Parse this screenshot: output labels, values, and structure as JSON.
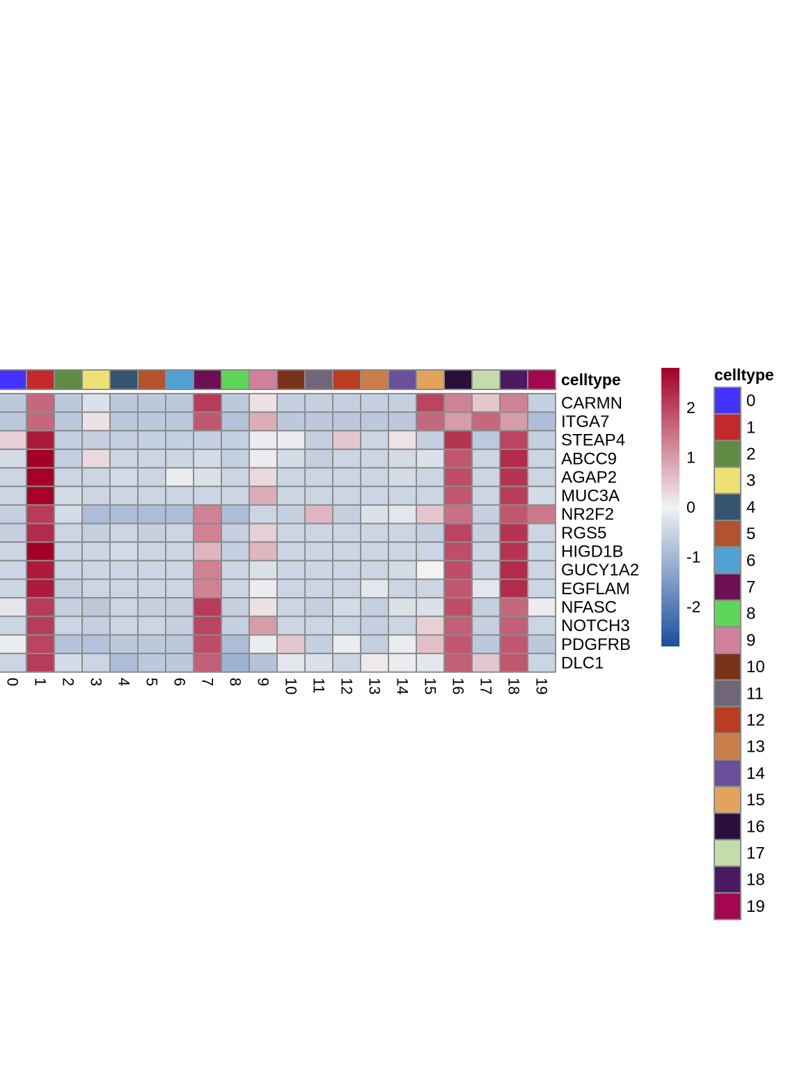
{
  "chart_data": {
    "type": "heatmap",
    "title": "",
    "annotation_title": "celltype",
    "rows": [
      "CARMN",
      "ITGA7",
      "STEAP4",
      "ABCC9",
      "AGAP2",
      "MUC3A",
      "NR2F2",
      "RGS5",
      "HIGD1B",
      "GUCY1A2",
      "EGFLAM",
      "NFASC",
      "NOTCH3",
      "PDGFRB",
      "DLC1"
    ],
    "columns": [
      "0",
      "1",
      "2",
      "3",
      "4",
      "5",
      "6",
      "7",
      "8",
      "9",
      "10",
      "11",
      "12",
      "13",
      "14",
      "15",
      "16",
      "17",
      "18",
      "19"
    ],
    "values": [
      [
        -0.7,
        1.6,
        -0.7,
        -0.3,
        -0.7,
        -0.7,
        -0.7,
        2.1,
        -0.7,
        0.2,
        -0.6,
        -0.6,
        -0.6,
        -0.6,
        -0.6,
        2.0,
        1.3,
        0.5,
        1.3,
        -0.6
      ],
      [
        -0.7,
        1.6,
        -0.7,
        0.2,
        -0.7,
        -0.7,
        -0.7,
        1.8,
        -0.8,
        0.8,
        -0.7,
        -0.7,
        -0.7,
        -0.7,
        -0.7,
        1.6,
        1.0,
        1.6,
        1.0,
        -0.9
      ],
      [
        0.4,
        2.5,
        -0.6,
        -0.6,
        -0.6,
        -0.6,
        -0.6,
        -0.6,
        -0.6,
        -0.1,
        -0.1,
        -0.6,
        0.5,
        -0.5,
        0.2,
        -0.6,
        2.2,
        -0.7,
        2.0,
        -0.6
      ],
      [
        -0.4,
        2.8,
        -0.6,
        0.3,
        -0.5,
        -0.5,
        -0.5,
        -0.4,
        -0.6,
        -0.1,
        -0.4,
        -0.6,
        -0.5,
        -0.5,
        -0.4,
        -0.3,
        1.8,
        -0.5,
        2.3,
        -0.5
      ],
      [
        -0.5,
        2.8,
        -0.5,
        -0.5,
        -0.4,
        -0.5,
        -0.1,
        -0.3,
        -0.5,
        0.3,
        -0.5,
        -0.5,
        -0.5,
        -0.5,
        -0.4,
        -0.5,
        1.9,
        -0.5,
        2.2,
        -0.5
      ],
      [
        -0.5,
        2.8,
        -0.4,
        -0.5,
        -0.5,
        -0.5,
        -0.5,
        -0.5,
        -0.5,
        0.8,
        -0.5,
        -0.5,
        -0.5,
        -0.5,
        -0.5,
        -0.5,
        1.8,
        -0.5,
        2.1,
        -0.4
      ],
      [
        -0.6,
        2.1,
        -0.4,
        -0.9,
        -0.9,
        -0.9,
        -0.9,
        1.3,
        -0.9,
        -0.5,
        -0.6,
        0.7,
        -0.6,
        -0.3,
        -0.2,
        0.5,
        1.5,
        -0.6,
        1.8,
        1.4
      ],
      [
        -0.6,
        2.3,
        -0.5,
        -0.6,
        -0.5,
        -0.6,
        -0.5,
        1.3,
        -0.6,
        0.4,
        -0.5,
        -0.5,
        -0.5,
        -0.5,
        -0.5,
        -0.6,
        2.0,
        -0.6,
        2.2,
        -0.5
      ],
      [
        -0.5,
        2.8,
        -0.5,
        -0.5,
        -0.4,
        -0.5,
        -0.5,
        0.7,
        -0.6,
        0.7,
        -0.5,
        -0.5,
        -0.5,
        -0.5,
        -0.5,
        -0.5,
        1.9,
        -0.5,
        2.2,
        -0.5
      ],
      [
        -0.5,
        2.5,
        -0.5,
        -0.5,
        -0.5,
        -0.5,
        -0.5,
        1.3,
        -0.5,
        -0.3,
        -0.5,
        -0.5,
        -0.5,
        -0.5,
        -0.4,
        0.0,
        1.9,
        -0.5,
        2.3,
        -0.5
      ],
      [
        -0.5,
        2.5,
        -0.6,
        -0.5,
        -0.5,
        -0.5,
        -0.5,
        1.3,
        -0.5,
        -0.1,
        -0.5,
        -0.5,
        -0.5,
        -0.2,
        -0.5,
        -0.5,
        1.8,
        -0.2,
        2.3,
        -0.5
      ],
      [
        -0.2,
        2.1,
        -0.6,
        -0.7,
        -0.5,
        -0.6,
        -0.6,
        2.1,
        -0.6,
        0.2,
        -0.5,
        -0.6,
        -0.4,
        -0.6,
        -0.3,
        -0.3,
        1.9,
        -0.6,
        1.6,
        -0.1
      ],
      [
        -0.5,
        2.1,
        -0.5,
        -0.6,
        -0.5,
        -0.5,
        -0.6,
        2.0,
        -0.6,
        1.0,
        -0.5,
        -0.5,
        -0.5,
        -0.6,
        -0.5,
        0.4,
        1.7,
        -0.6,
        1.7,
        -0.5
      ],
      [
        -0.1,
        2.0,
        -0.8,
        -0.8,
        -0.7,
        -0.7,
        -0.7,
        1.9,
        -0.9,
        -0.1,
        0.5,
        -0.6,
        -0.1,
        -0.6,
        -0.1,
        0.6,
        1.8,
        -0.7,
        1.8,
        -0.7
      ],
      [
        -0.5,
        2.1,
        -0.4,
        -0.5,
        -0.9,
        -0.7,
        -0.7,
        1.7,
        -1.1,
        -0.8,
        -0.2,
        -0.3,
        -0.5,
        0.1,
        -0.1,
        -0.2,
        1.7,
        0.5,
        1.8,
        -0.5
      ]
    ],
    "column_colors": [
      "#4433ff",
      "#c4282b",
      "#5f8b44",
      "#efe073",
      "#34556f",
      "#b2532e",
      "#4fa1d6",
      "#6e0f53",
      "#5ed65a",
      "#d17f9a",
      "#7a3319",
      "#716679",
      "#bb3c20",
      "#cb7e48",
      "#6a4f9c",
      "#e1a45a",
      "#2a0f3b",
      "#c4dbab",
      "#4a1962",
      "#a2074f"
    ],
    "colorbar": {
      "ticks": [
        2,
        1,
        0,
        -1,
        -2
      ],
      "tick_labels": [
        "2",
        "1",
        "0",
        "-1",
        "-2"
      ],
      "range": [
        -2.8,
        2.8
      ],
      "low_color": "#1a4e9f",
      "mid_color": "#f2f2f2",
      "high_color": "#a50026"
    },
    "legend": {
      "title": "celltype",
      "entries": [
        "0",
        "1",
        "2",
        "3",
        "4",
        "5",
        "6",
        "7",
        "8",
        "9",
        "10",
        "11",
        "12",
        "13",
        "14",
        "15",
        "16",
        "17",
        "18",
        "19"
      ]
    }
  }
}
